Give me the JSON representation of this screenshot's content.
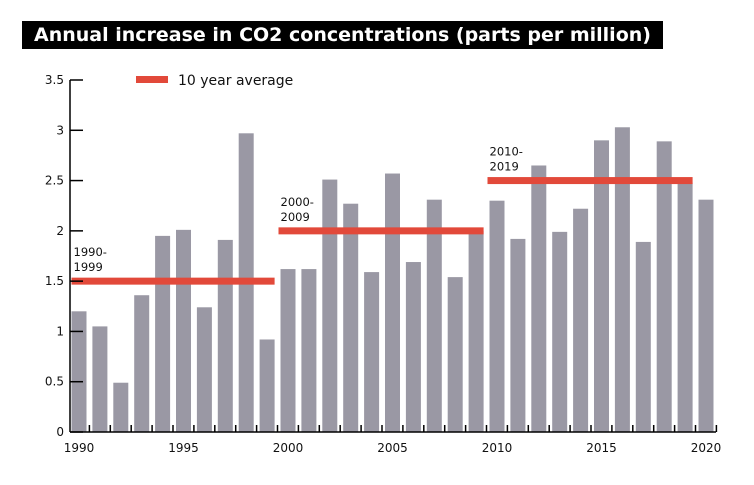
{
  "chart_data": {
    "type": "bar",
    "title": "Annual increase in CO2 concentrations (parts per million)",
    "xlabel": "",
    "ylabel": "",
    "ylim": [
      0,
      3.5
    ],
    "yticks": [
      "0",
      "0.5",
      "1",
      "1.5",
      "2",
      "2.5",
      "3",
      "3.5"
    ],
    "xticks": [
      "1990",
      "1995",
      "2000",
      "2005",
      "2010",
      "2015",
      "2020"
    ],
    "grid": false,
    "legend": {
      "position": "top-left",
      "label": "10 year average"
    },
    "colors": {
      "bars": "#9a98a4",
      "average": "#e2493a",
      "title_bg": "#000000"
    },
    "x": [
      1990,
      1991,
      1992,
      1993,
      1994,
      1995,
      1996,
      1997,
      1998,
      1999,
      2000,
      2001,
      2002,
      2003,
      2004,
      2005,
      2006,
      2007,
      2008,
      2009,
      2010,
      2011,
      2012,
      2013,
      2014,
      2015,
      2016,
      2017,
      2018,
      2019,
      2020
    ],
    "values": [
      1.2,
      1.05,
      0.49,
      1.36,
      1.95,
      2.01,
      1.24,
      1.91,
      2.97,
      0.92,
      1.62,
      1.62,
      2.51,
      2.27,
      1.59,
      2.57,
      1.69,
      2.31,
      1.54,
      2.0,
      2.3,
      1.92,
      2.65,
      1.99,
      2.22,
      2.9,
      3.03,
      1.89,
      2.89,
      2.48,
      2.31
    ],
    "averages": [
      {
        "label_line1": "1990-",
        "label_line2": "1999",
        "start": 1990,
        "end": 1999,
        "value": 1.5
      },
      {
        "label_line1": "2000-",
        "label_line2": "2009",
        "start": 2000,
        "end": 2009,
        "value": 2.0
      },
      {
        "label_line1": "2010-",
        "label_line2": "2019",
        "start": 2010,
        "end": 2019,
        "value": 2.5
      }
    ]
  }
}
